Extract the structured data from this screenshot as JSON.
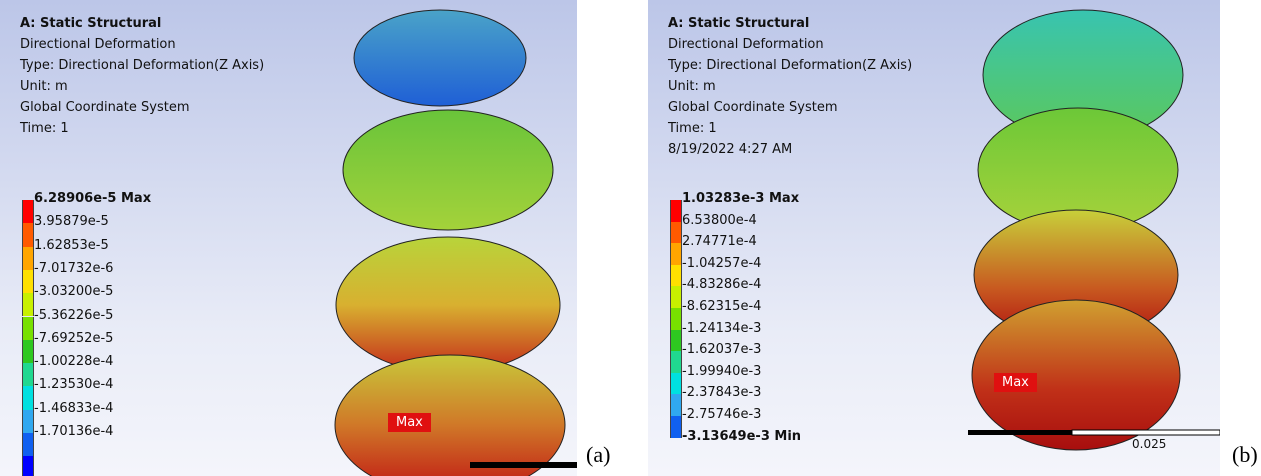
{
  "panels": [
    {
      "label": "(a)",
      "title": "A: Static Structural",
      "info": [
        "Directional Deformation",
        "Type: Directional Deformation(Z Axis)",
        "Unit: m",
        "Global Coordinate System",
        "Time: 1"
      ],
      "legend_top": "6.28906e-5 Max",
      "legend": [
        "3.95879e-5",
        "1.62853e-5",
        "-7.01732e-6",
        "-3.03200e-5",
        "-5.36226e-5",
        "-7.69252e-5",
        "-1.00228e-4",
        "-1.23530e-4",
        "-1.46833e-4",
        "-1.70136e-4"
      ],
      "max_tag": "Max"
    },
    {
      "label": "(b)",
      "title": "A: Static Structural",
      "info": [
        "Directional Deformation",
        "Type: Directional Deformation(Z Axis)",
        "Unit: m",
        "Global Coordinate System",
        "Time: 1",
        "8/19/2022 4:27 AM"
      ],
      "legend_top": "1.03283e-3 Max",
      "legend": [
        "6.53800e-4",
        "2.74771e-4",
        "-1.04257e-4",
        "-4.83286e-4",
        "-8.62315e-4",
        "-1.24134e-3",
        "-1.62037e-3",
        "-1.99940e-3",
        "-2.37843e-3",
        "-2.75746e-3"
      ],
      "legend_bottom": "-3.13649e-3 Min",
      "max_tag": "Max",
      "scale": "0.025"
    }
  ]
}
